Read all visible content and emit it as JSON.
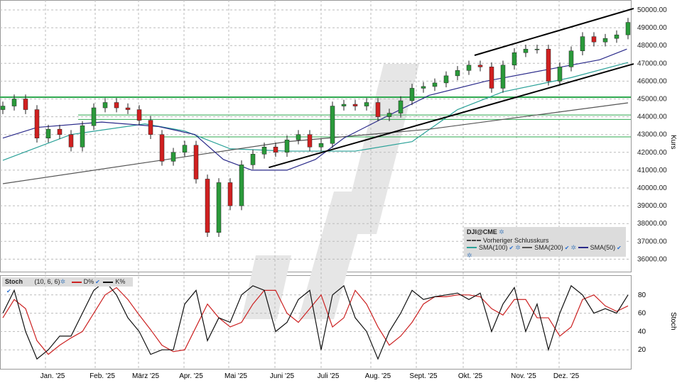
{
  "chart_data": [
    {
      "type": "candlestick",
      "symbol": "DJI@CME",
      "ylabel": "Kurs",
      "ylim": [
        35400,
        50100
      ],
      "yticks": [
        "50000.00",
        "49000.00",
        "48000.00",
        "47000.00",
        "46000.00",
        "45000.00",
        "44000.00",
        "43000.00",
        "42000.00",
        "41000.00",
        "40000.00",
        "39000.00",
        "38000.00",
        "37000.00",
        "36000.00"
      ],
      "xticks": [
        "Jan. '25",
        "Feb. '25",
        "März '25",
        "Apr. '25",
        "Mai '25",
        "Juni '25",
        "Juli '25",
        "Aug. '25",
        "Sept. '25",
        "Okt. '25",
        "Nov. '25",
        "Dez. '25"
      ],
      "interval": "weekly (approx.)",
      "closes": [
        44600,
        45000,
        44400,
        42800,
        43300,
        43000,
        42300,
        43500,
        44500,
        44800,
        44500,
        44400,
        43800,
        43000,
        41500,
        42000,
        42400,
        40500,
        37500,
        40300,
        39000,
        41300,
        41900,
        42300,
        42000,
        42700,
        43000,
        42300,
        42500,
        44600,
        44700,
        44600,
        44800,
        44000,
        44200,
        44900,
        45600,
        45700,
        45900,
        46300,
        46600,
        46900,
        46800,
        45600,
        46900,
        47600,
        47800,
        47800,
        46000,
        46800,
        47700,
        48500,
        48200,
        48400,
        48600,
        49300
      ],
      "series": [
        {
          "name": "SMA(100)",
          "color": "#2aa198",
          "points": [
            [
              0,
              41550
            ],
            [
              6,
              43000
            ],
            [
              12.5,
              43600
            ],
            [
              16,
              43200
            ],
            [
              20,
              42200
            ],
            [
              25,
              42070
            ],
            [
              31,
              42070
            ],
            [
              36,
              42600
            ],
            [
              40,
              44400
            ],
            [
              44,
              45400
            ],
            [
              50,
              46200
            ],
            [
              55,
              47050
            ]
          ]
        },
        {
          "name": "SMA(200)",
          "color": "#555555",
          "points": [
            [
              0,
              40240
            ],
            [
              25,
              42600
            ],
            [
              37.5,
              43300
            ],
            [
              55,
              44780
            ]
          ]
        },
        {
          "name": "SMA(50)",
          "color": "#2a2a8a",
          "points": [
            [
              0,
              42800
            ],
            [
              3,
              43400
            ],
            [
              8.7,
              43700
            ],
            [
              13.7,
              43450
            ],
            [
              16.9,
              43000
            ],
            [
              19.4,
              41600
            ],
            [
              21.9,
              41000
            ],
            [
              25,
              41000
            ],
            [
              27.5,
              41600
            ],
            [
              30,
              42800
            ],
            [
              33.7,
              44000
            ],
            [
              37.5,
              45200
            ],
            [
              42.5,
              46000
            ],
            [
              47.5,
              46600
            ],
            [
              52.5,
              47200
            ],
            [
              54.9,
              47800
            ]
          ]
        }
      ],
      "horizontal_lines": [
        45100,
        44100,
        43850,
        42870
      ],
      "trend_lines": [
        {
          "from": [
            41.5,
            47450
          ],
          "to": [
            55.5,
            50080
          ]
        },
        {
          "from": [
            23.4,
            41150
          ],
          "to": [
            55.5,
            46970
          ]
        }
      ],
      "legend": {
        "title": "DJI@CME",
        "prev_close": "Vorheriger Schlusskurs",
        "items": [
          "SMA(100)",
          "SMA(200)",
          "SMA(50)"
        ]
      }
    },
    {
      "type": "line",
      "title": "Stoch",
      "params": "(10, 6, 6)",
      "ylabel": "Stoch",
      "ylim": [
        0,
        100
      ],
      "yticks": [
        "80",
        "60",
        "40",
        "20"
      ],
      "series": [
        {
          "name": "D%",
          "color": "#cc2222",
          "values": [
            55,
            75,
            65,
            30,
            15,
            25,
            33,
            40,
            60,
            80,
            88,
            75,
            58,
            42,
            25,
            18,
            20,
            45,
            70,
            55,
            45,
            50,
            70,
            85,
            85,
            60,
            50,
            65,
            80,
            45,
            55,
            85,
            70,
            45,
            25,
            35,
            50,
            70,
            78,
            78,
            80,
            80,
            78,
            65,
            58,
            75,
            75,
            55,
            55,
            35,
            45,
            75,
            80,
            68,
            62,
            68
          ]
        },
        {
          "name": "K%",
          "color": "#111111",
          "values": [
            60,
            85,
            40,
            10,
            20,
            35,
            35,
            60,
            85,
            95,
            80,
            55,
            40,
            15,
            20,
            20,
            70,
            85,
            30,
            55,
            50,
            80,
            90,
            85,
            40,
            50,
            75,
            85,
            20,
            80,
            90,
            55,
            40,
            10,
            40,
            60,
            85,
            75,
            78,
            80,
            82,
            75,
            82,
            40,
            70,
            88,
            40,
            70,
            20,
            60,
            90,
            80,
            60,
            65,
            60,
            80
          ]
        }
      ]
    }
  ]
}
